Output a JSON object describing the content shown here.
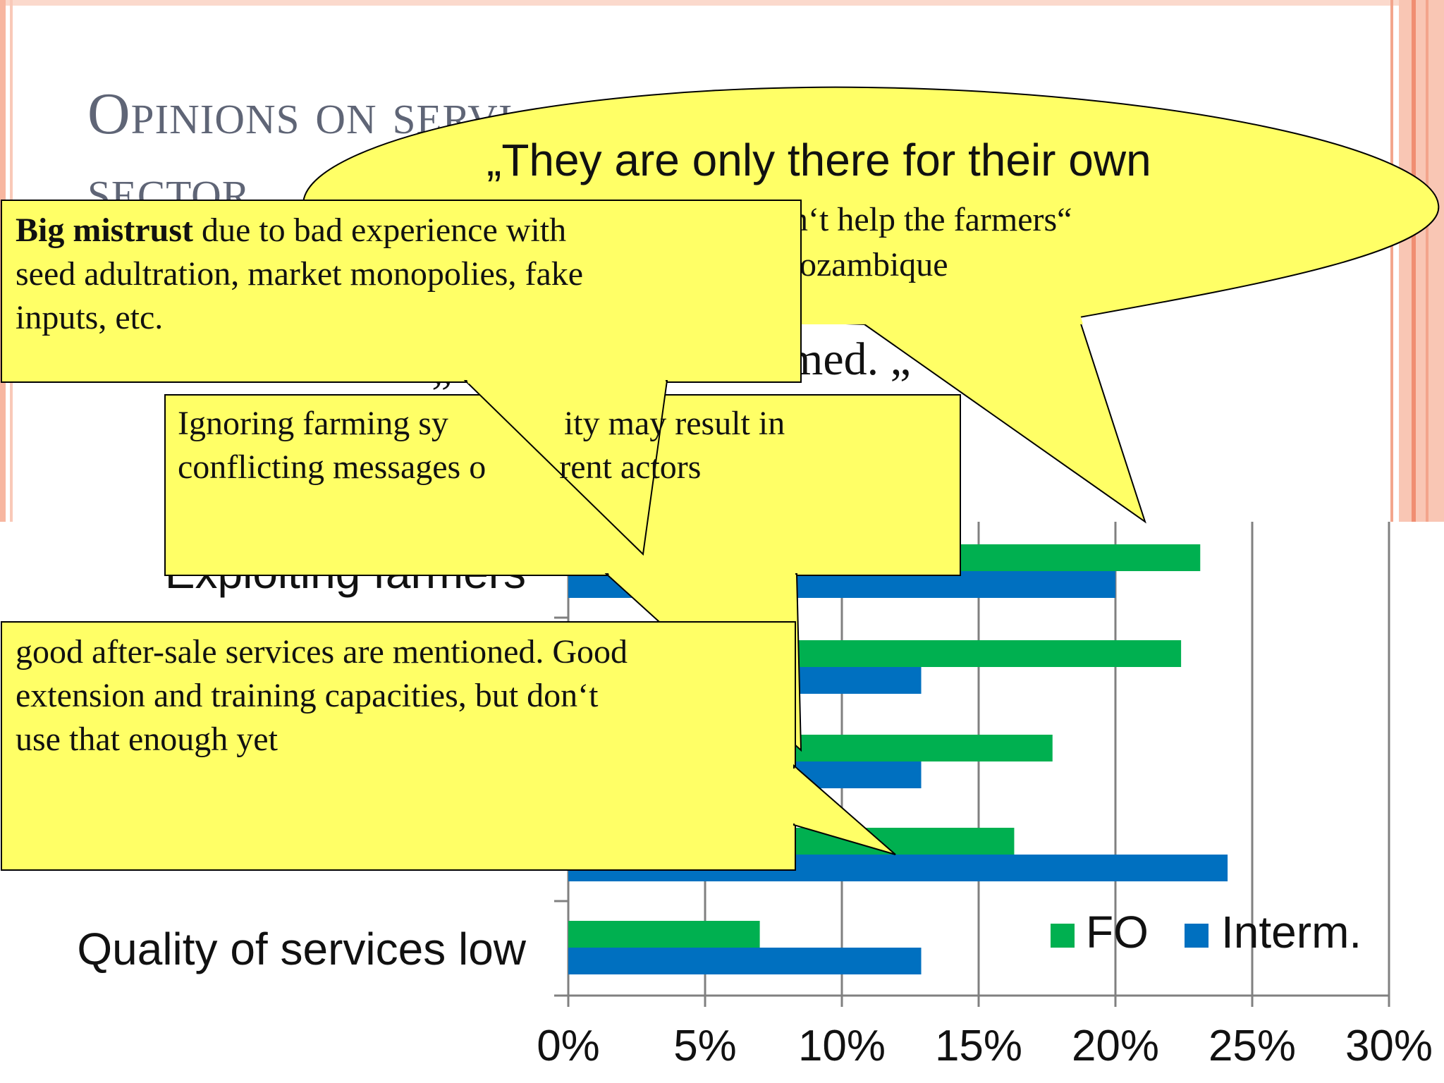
{
  "slide": {
    "title_line1": "Opinions on servi",
    "title_line2": "sector",
    "bg_fragment_1": "n‘t help the farmers“",
    "bg_fragment_2": "ozambique",
    "bg_fragment_3": "med. „",
    "bg_fragment_4": "„"
  },
  "callouts": {
    "quote_line1": "„They are only there for their own",
    "mistrust_bold": "Big mistrust",
    "mistrust_rest_1": " due to bad experience with",
    "mistrust_line2": "seed adultration, market monopolies, fake",
    "mistrust_line3": "inputs, etc.",
    "farming_line1": "Ignoring farming sy",
    "farming_line1b": "ity may result in",
    "farming_line2": "conflicting messages o",
    "farming_line2b": "rent actors",
    "aftersale_line1": "good after-sale services are mentioned. Good",
    "aftersale_line2": "extension and training capacities, but don‘t",
    "aftersale_line3": "use that enough yet"
  },
  "colors": {
    "fo": "#00b050",
    "interm": "#0070c0",
    "callout_fill": "#ffff66",
    "grid": "#808080"
  },
  "chart_data": {
    "type": "bar",
    "orientation": "horizontal",
    "categories": [
      "Exploiting farmers",
      "",
      "",
      "",
      "Quality of services low"
    ],
    "series": [
      {
        "name": "FO",
        "values": [
          23.1,
          22.4,
          17.7,
          16.3,
          7.0
        ]
      },
      {
        "name": "Interm.",
        "values": [
          20.0,
          12.9,
          12.9,
          24.1,
          12.9
        ]
      }
    ],
    "xlim": [
      0,
      30
    ],
    "xticks": [
      "0%",
      "5%",
      "10%",
      "15%",
      "20%",
      "25%",
      "30%"
    ],
    "grid": true,
    "legend": "bottom-right"
  }
}
